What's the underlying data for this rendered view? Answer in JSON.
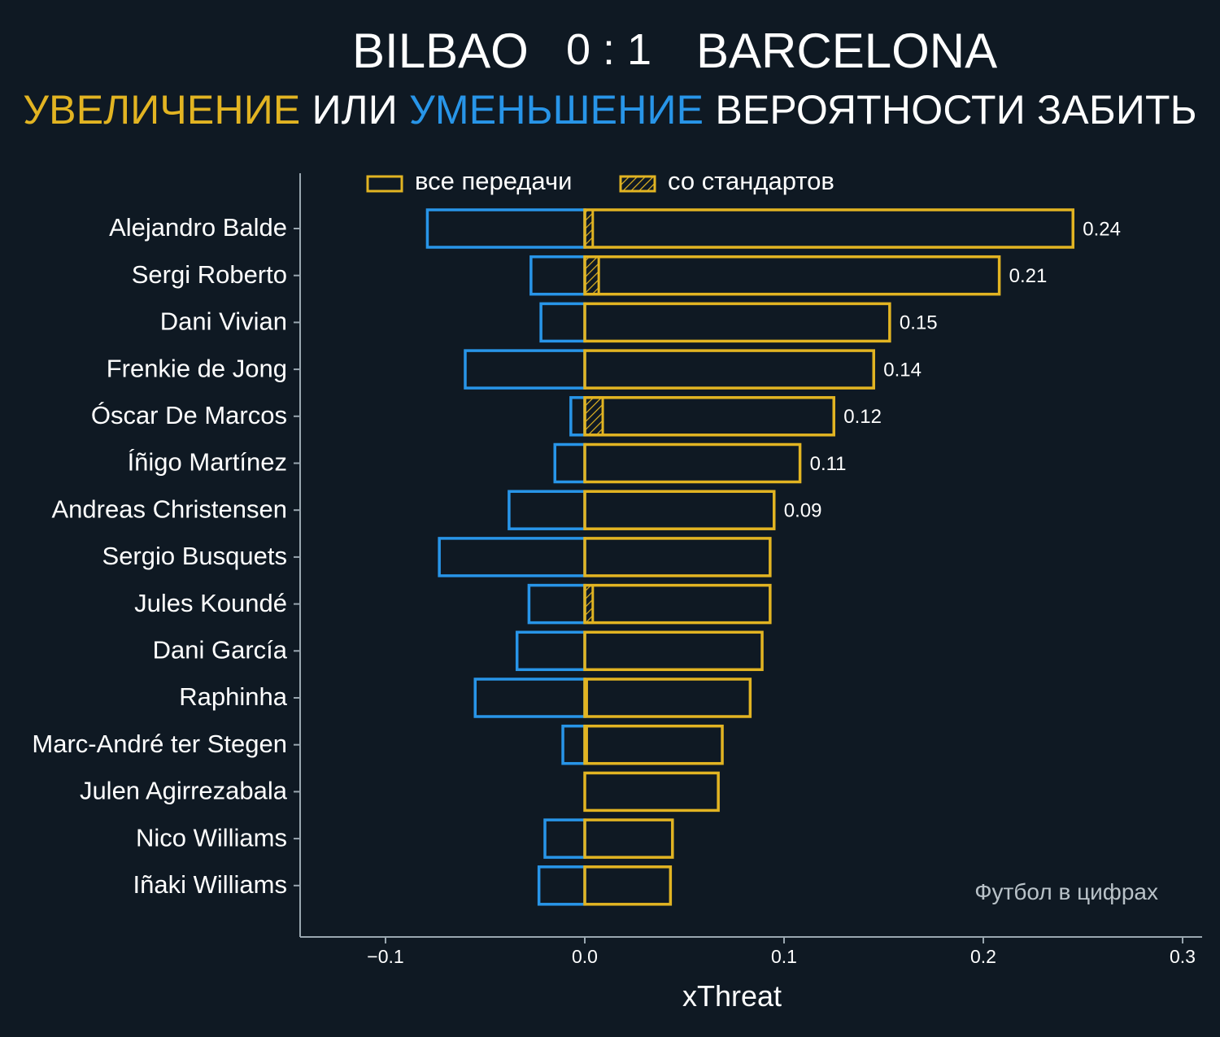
{
  "header": {
    "home_team": "BILBAO",
    "score": "0 : 1",
    "away_team": "BARCELONA",
    "subtitle_increase": "УВЕЛИЧЕНИЕ",
    "subtitle_or": "ИЛИ",
    "subtitle_decrease": "УМЕНЬШЕНИЕ",
    "subtitle_rest": "ВЕРОЯТНОСТИ ЗАБИТЬ"
  },
  "colors": {
    "background": "#0f1923",
    "increase": "#e2b422",
    "decrease": "#2895e8",
    "axis": "#9aa7b0"
  },
  "chart_data": {
    "type": "bar",
    "orientation": "horizontal",
    "xlabel": "xThreat",
    "xlim": [
      -0.15,
      0.305
    ],
    "xticks": [
      -0.1,
      0.0,
      0.1,
      0.2,
      0.3
    ],
    "xtick_labels": [
      "−0.1",
      "0.0",
      "0.1",
      "0.2",
      "0.3"
    ],
    "legend": {
      "placement": "top",
      "entries": [
        "все передачи",
        "со стандартов"
      ]
    },
    "credit": "Футбол в цифрах",
    "categories": [
      "Alejandro Balde",
      "Sergi Roberto",
      "Dani Vivian",
      "Frenkie de Jong",
      "Óscar De Marcos",
      "Íñigo Martínez",
      "Andreas Christensen",
      "Sergio Busquets",
      "Jules Koundé",
      "Dani García",
      "Raphinha",
      "Marc-André ter Stegen",
      "Julen Agirrezabala",
      "Nico Williams",
      "Iñaki Williams"
    ],
    "series": [
      {
        "name": "все передачи",
        "positive": [
          0.245,
          0.208,
          0.153,
          0.145,
          0.125,
          0.108,
          0.095,
          0.093,
          0.093,
          0.089,
          0.083,
          0.069,
          0.067,
          0.044,
          0.043
        ],
        "negative": [
          -0.079,
          -0.027,
          -0.022,
          -0.06,
          -0.007,
          -0.015,
          -0.038,
          -0.073,
          -0.028,
          -0.034,
          -0.055,
          -0.011,
          0.0,
          -0.02,
          -0.023
        ]
      },
      {
        "name": "со стандартов",
        "positive": [
          0.004,
          0.007,
          0.0,
          0.0,
          0.009,
          0.0,
          0.0,
          0.0,
          0.004,
          0.0,
          0.001,
          0.001,
          0.0,
          0.0,
          0.0
        ]
      }
    ],
    "value_labels": [
      "0.24",
      "0.21",
      "0.15",
      "0.14",
      "0.12",
      "0.11",
      "0.09",
      "",
      "",
      "",
      "",
      "",
      "",
      "",
      ""
    ]
  }
}
